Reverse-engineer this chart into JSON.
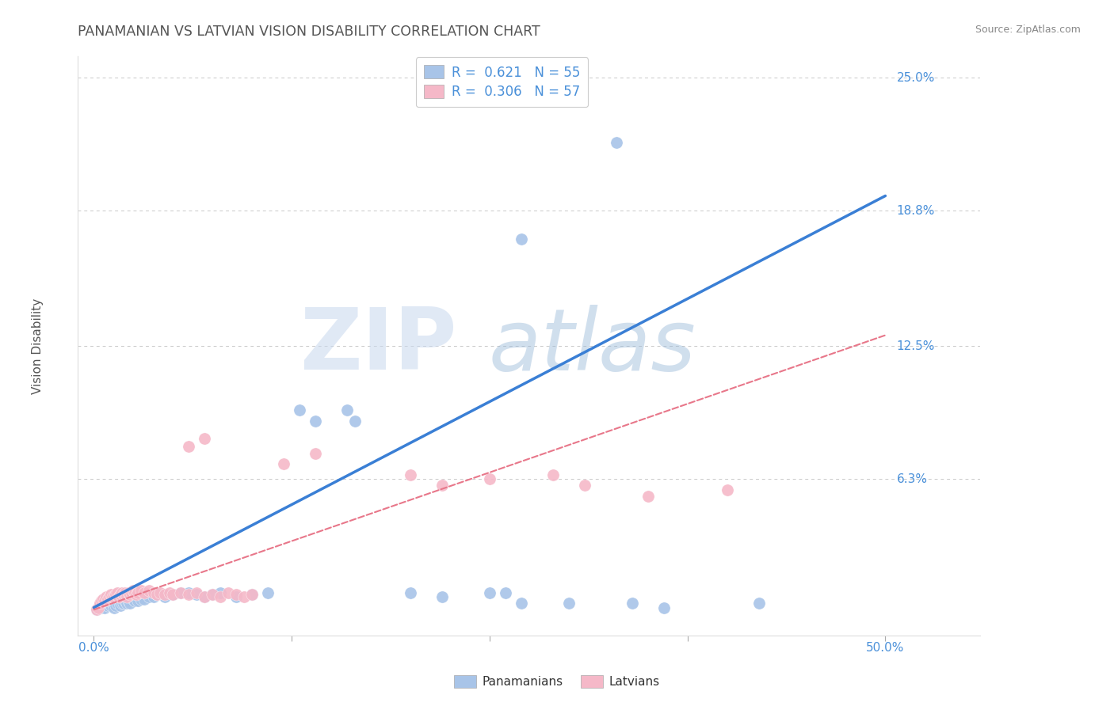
{
  "title": "PANAMANIAN VS LATVIAN VISION DISABILITY CORRELATION CHART",
  "source": "Source: ZipAtlas.com",
  "ylabel": "Vision Disability",
  "xlim": [
    0.0,
    0.5
  ],
  "ylim": [
    0.0,
    0.25
  ],
  "ytick_labels": [
    "6.3%",
    "12.5%",
    "18.8%",
    "25.0%"
  ],
  "ytick_values": [
    0.063,
    0.125,
    0.188,
    0.25
  ],
  "xtick_label_left": "0.0%",
  "xtick_label_right": "50.0%",
  "grid_color": "#c8c8c8",
  "background_color": "#ffffff",
  "legend_r1": "R =  0.621",
  "legend_n1": "N = 55",
  "legend_r2": "R =  0.306",
  "legend_n2": "N = 57",
  "panamanian_color": "#a8c4e8",
  "latvian_color": "#f5b8c8",
  "panamanian_line_color": "#3a7fd5",
  "latvian_line_color": "#e8778a",
  "title_color": "#555555",
  "source_color": "#888888",
  "axis_label_color": "#555555",
  "tick_label_color": "#4a90d9",
  "legend_text_color": "#4a90d9",
  "panamanian_scatter": [
    [
      0.002,
      0.002
    ],
    [
      0.003,
      0.003
    ],
    [
      0.004,
      0.004
    ],
    [
      0.005,
      0.005
    ],
    [
      0.005,
      0.003
    ],
    [
      0.006,
      0.004
    ],
    [
      0.007,
      0.003
    ],
    [
      0.008,
      0.005
    ],
    [
      0.009,
      0.004
    ],
    [
      0.01,
      0.005
    ],
    [
      0.011,
      0.004
    ],
    [
      0.012,
      0.005
    ],
    [
      0.013,
      0.003
    ],
    [
      0.014,
      0.004
    ],
    [
      0.015,
      0.005
    ],
    [
      0.016,
      0.006
    ],
    [
      0.017,
      0.004
    ],
    [
      0.018,
      0.005
    ],
    [
      0.019,
      0.005
    ],
    [
      0.02,
      0.006
    ],
    [
      0.021,
      0.005
    ],
    [
      0.022,
      0.006
    ],
    [
      0.023,
      0.005
    ],
    [
      0.025,
      0.007
    ],
    [
      0.026,
      0.006
    ],
    [
      0.028,
      0.006
    ],
    [
      0.03,
      0.007
    ],
    [
      0.032,
      0.007
    ],
    [
      0.035,
      0.008
    ],
    [
      0.038,
      0.008
    ],
    [
      0.04,
      0.009
    ],
    [
      0.045,
      0.008
    ],
    [
      0.05,
      0.009
    ],
    [
      0.055,
      0.01
    ],
    [
      0.06,
      0.01
    ],
    [
      0.065,
      0.009
    ],
    [
      0.07,
      0.008
    ],
    [
      0.075,
      0.009
    ],
    [
      0.08,
      0.01
    ],
    [
      0.09,
      0.008
    ],
    [
      0.1,
      0.009
    ],
    [
      0.11,
      0.01
    ],
    [
      0.13,
      0.095
    ],
    [
      0.14,
      0.09
    ],
    [
      0.16,
      0.095
    ],
    [
      0.165,
      0.09
    ],
    [
      0.2,
      0.01
    ],
    [
      0.22,
      0.008
    ],
    [
      0.25,
      0.01
    ],
    [
      0.26,
      0.01
    ],
    [
      0.27,
      0.005
    ],
    [
      0.3,
      0.005
    ],
    [
      0.34,
      0.005
    ],
    [
      0.36,
      0.003
    ],
    [
      0.42,
      0.005
    ]
  ],
  "latvian_scatter": [
    [
      0.002,
      0.002
    ],
    [
      0.003,
      0.003
    ],
    [
      0.004,
      0.005
    ],
    [
      0.005,
      0.006
    ],
    [
      0.006,
      0.007
    ],
    [
      0.007,
      0.006
    ],
    [
      0.008,
      0.008
    ],
    [
      0.009,
      0.007
    ],
    [
      0.01,
      0.008
    ],
    [
      0.011,
      0.009
    ],
    [
      0.012,
      0.008
    ],
    [
      0.013,
      0.008
    ],
    [
      0.014,
      0.009
    ],
    [
      0.015,
      0.01
    ],
    [
      0.016,
      0.008
    ],
    [
      0.017,
      0.009
    ],
    [
      0.018,
      0.01
    ],
    [
      0.019,
      0.009
    ],
    [
      0.02,
      0.01
    ],
    [
      0.021,
      0.008
    ],
    [
      0.022,
      0.01
    ],
    [
      0.023,
      0.009
    ],
    [
      0.024,
      0.01
    ],
    [
      0.025,
      0.011
    ],
    [
      0.026,
      0.01
    ],
    [
      0.027,
      0.009
    ],
    [
      0.028,
      0.01
    ],
    [
      0.03,
      0.011
    ],
    [
      0.032,
      0.01
    ],
    [
      0.035,
      0.011
    ],
    [
      0.038,
      0.01
    ],
    [
      0.04,
      0.009
    ],
    [
      0.042,
      0.01
    ],
    [
      0.045,
      0.009
    ],
    [
      0.048,
      0.01
    ],
    [
      0.05,
      0.009
    ],
    [
      0.055,
      0.01
    ],
    [
      0.06,
      0.009
    ],
    [
      0.065,
      0.01
    ],
    [
      0.07,
      0.008
    ],
    [
      0.075,
      0.009
    ],
    [
      0.08,
      0.008
    ],
    [
      0.085,
      0.01
    ],
    [
      0.09,
      0.009
    ],
    [
      0.095,
      0.008
    ],
    [
      0.1,
      0.009
    ],
    [
      0.06,
      0.078
    ],
    [
      0.07,
      0.082
    ],
    [
      0.12,
      0.07
    ],
    [
      0.14,
      0.075
    ],
    [
      0.2,
      0.065
    ],
    [
      0.22,
      0.06
    ],
    [
      0.25,
      0.063
    ],
    [
      0.29,
      0.065
    ],
    [
      0.31,
      0.06
    ],
    [
      0.35,
      0.055
    ],
    [
      0.4,
      0.058
    ]
  ],
  "pan_outlier_points": [
    [
      0.33,
      0.22
    ],
    [
      0.27,
      0.175
    ]
  ],
  "pan_regression": [
    0.0,
    0.003,
    0.5,
    0.195
  ],
  "lat_regression": [
    0.0,
    0.002,
    0.5,
    0.13
  ]
}
